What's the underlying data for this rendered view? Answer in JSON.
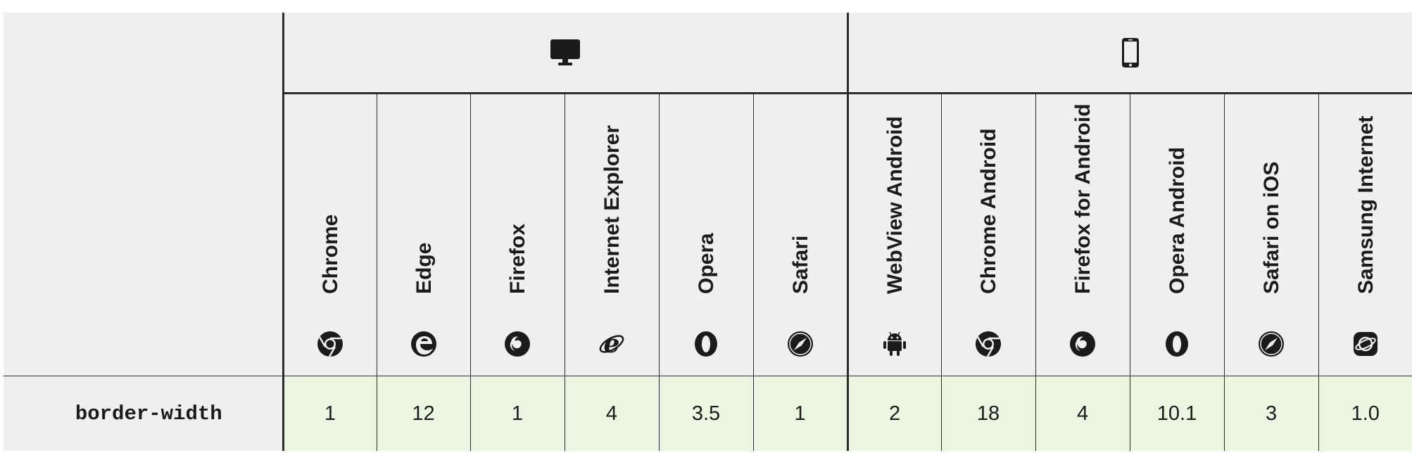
{
  "platforms": [
    {
      "name": "desktop",
      "icon": "desktop-monitor-icon"
    },
    {
      "name": "mobile",
      "icon": "mobile-phone-icon"
    }
  ],
  "browsers": [
    {
      "name": "Chrome",
      "icon": "chrome-icon"
    },
    {
      "name": "Edge",
      "icon": "edge-icon"
    },
    {
      "name": "Firefox",
      "icon": "firefox-icon"
    },
    {
      "name": "Internet Explorer",
      "icon": "internet-explorer-icon"
    },
    {
      "name": "Opera",
      "icon": "opera-icon"
    },
    {
      "name": "Safari",
      "icon": "safari-icon"
    },
    {
      "name": "WebView Android",
      "icon": "android-icon"
    },
    {
      "name": "Chrome Android",
      "icon": "chrome-icon"
    },
    {
      "name": "Firefox for Android",
      "icon": "firefox-icon"
    },
    {
      "name": "Opera Android",
      "icon": "opera-icon"
    },
    {
      "name": "Safari on iOS",
      "icon": "safari-icon"
    },
    {
      "name": "Samsung Internet",
      "icon": "samsung-internet-icon"
    }
  ],
  "row": {
    "feature": "border-width",
    "values": [
      "1",
      "12",
      "1",
      "4",
      "3.5",
      "1",
      "2",
      "18",
      "4",
      "10.1",
      "3",
      "1.0"
    ]
  },
  "colors": {
    "header_bg": "#efefef",
    "supported_bg": "#eaf6e1",
    "border": "#2b2b2b",
    "text": "#1b1b1b"
  }
}
